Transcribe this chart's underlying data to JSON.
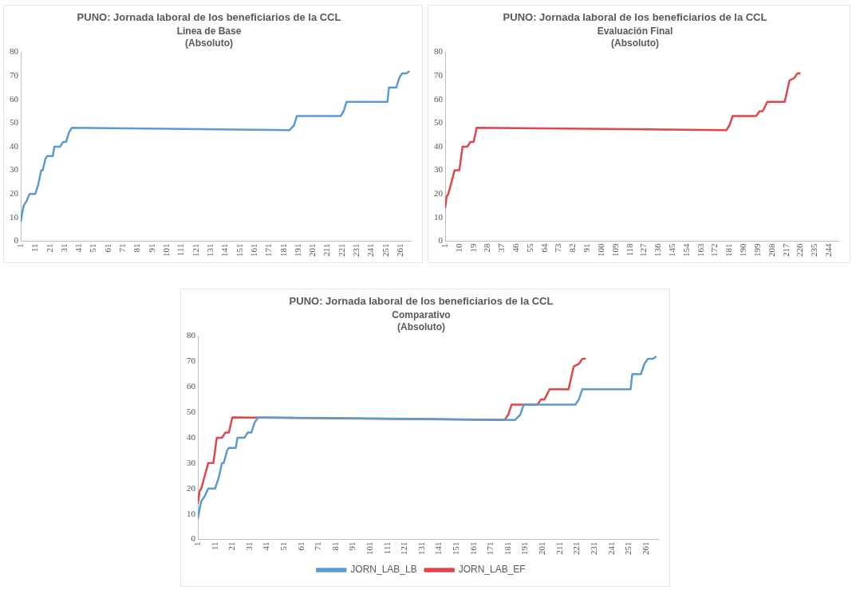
{
  "chart_data": [
    {
      "type": "line",
      "title": "PUNO: Jornada laboral de los beneficiarios de la CCL",
      "subtitle": "Linea de Base\n(Absoluto)",
      "xlim": [
        1,
        268
      ],
      "xticks": [
        1,
        11,
        21,
        31,
        41,
        51,
        61,
        71,
        81,
        91,
        101,
        111,
        121,
        131,
        141,
        151,
        161,
        171,
        181,
        191,
        201,
        211,
        221,
        231,
        241,
        251,
        261
      ],
      "ylim": [
        0,
        80
      ],
      "yticks": [
        0,
        10,
        20,
        30,
        40,
        50,
        60,
        70,
        80
      ],
      "grid": false,
      "legend": false,
      "marker": "none",
      "series": [
        {
          "color": "#5b9bd5",
          "x": [
            1,
            2,
            3,
            5,
            7,
            11,
            13,
            15,
            16,
            18,
            19,
            23,
            24,
            28,
            30,
            32,
            34,
            36,
            185,
            188,
            190,
            220,
            222,
            224,
            252,
            253,
            258,
            260,
            262,
            265,
            267
          ],
          "values": [
            8,
            12,
            15,
            17,
            20,
            20,
            24,
            30,
            30,
            35,
            36,
            36,
            40,
            40,
            42,
            42,
            46,
            48,
            47,
            49,
            53,
            53,
            55,
            59,
            59,
            65,
            65,
            69,
            71,
            71,
            72
          ]
        }
      ]
    },
    {
      "type": "line",
      "title": "PUNO: Jornada laboral de los beneficiarios de la CCL",
      "subtitle": "Evaluación Final\n(Absoluto)",
      "xlim": [
        1,
        250
      ],
      "xticks": [
        1,
        10,
        19,
        28,
        37,
        46,
        55,
        64,
        73,
        82,
        91,
        100,
        109,
        118,
        127,
        136,
        145,
        154,
        163,
        172,
        181,
        190,
        199,
        208,
        217,
        226,
        235,
        244
      ],
      "ylim": [
        0,
        80
      ],
      "yticks": [
        0,
        10,
        20,
        30,
        40,
        50,
        60,
        70,
        80
      ],
      "grid": false,
      "legend": false,
      "marker": "none",
      "series": [
        {
          "color": "#e0474c",
          "x": [
            1,
            2,
            3,
            5,
            7,
            10,
            12,
            15,
            17,
            19,
            21,
            179,
            181,
            183,
            198,
            200,
            202,
            205,
            216,
            219,
            222,
            224,
            226
          ],
          "values": [
            14,
            19,
            20,
            25,
            30,
            30,
            40,
            40,
            42,
            42,
            48,
            47,
            49,
            53,
            53,
            55,
            55,
            59,
            59,
            68,
            69,
            71,
            71
          ]
        }
      ]
    },
    {
      "type": "line",
      "title": "PUNO: Jornada laboral de los beneficiarios de la CCL",
      "subtitle": "Comparativo\n(Absoluto)",
      "xlim": [
        1,
        268
      ],
      "xticks": [
        1,
        11,
        21,
        31,
        41,
        51,
        61,
        71,
        81,
        91,
        101,
        111,
        121,
        131,
        141,
        151,
        161,
        171,
        181,
        191,
        201,
        211,
        221,
        231,
        241,
        251,
        261
      ],
      "ylim": [
        0,
        80
      ],
      "yticks": [
        0,
        10,
        20,
        30,
        40,
        50,
        60,
        70,
        80
      ],
      "grid": false,
      "legend": "bottom",
      "marker": "none",
      "series": [
        {
          "name": "JORN_LAB_LB",
          "color": "#5b9bd5",
          "x": [
            1,
            2,
            3,
            5,
            7,
            11,
            13,
            15,
            16,
            18,
            19,
            23,
            24,
            28,
            30,
            32,
            34,
            36,
            185,
            188,
            190,
            220,
            222,
            224,
            252,
            253,
            258,
            260,
            262,
            265,
            267
          ],
          "values": [
            8,
            12,
            15,
            17,
            20,
            20,
            24,
            30,
            30,
            35,
            36,
            36,
            40,
            40,
            42,
            42,
            46,
            48,
            47,
            49,
            53,
            53,
            55,
            59,
            59,
            65,
            65,
            69,
            71,
            71,
            72
          ]
        },
        {
          "name": "JORN_LAB_EF",
          "color": "#e0474c",
          "x": [
            1,
            2,
            3,
            5,
            7,
            10,
            12,
            15,
            17,
            19,
            21,
            179,
            181,
            183,
            198,
            200,
            202,
            205,
            216,
            219,
            222,
            224,
            226
          ],
          "values": [
            14,
            19,
            20,
            25,
            30,
            30,
            40,
            40,
            42,
            42,
            48,
            47,
            49,
            53,
            53,
            55,
            55,
            59,
            59,
            68,
            69,
            71,
            71
          ]
        }
      ]
    }
  ]
}
